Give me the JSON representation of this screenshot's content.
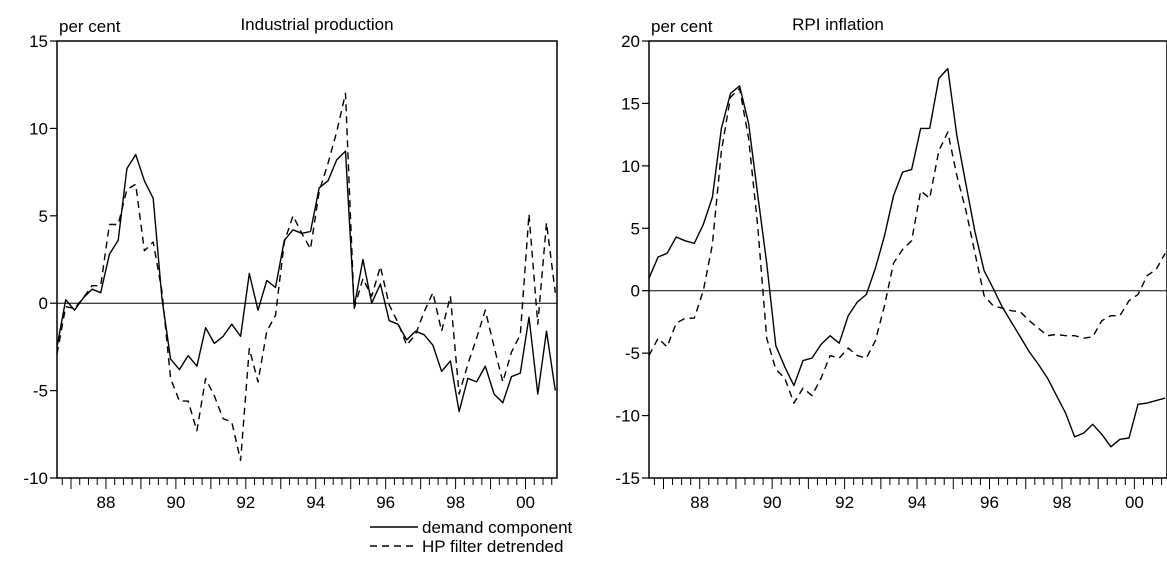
{
  "legend": {
    "solid_label": "demand component",
    "dashed_label": "HP filter detrended"
  },
  "chart_data": [
    {
      "type": "line",
      "title": "Industrial production",
      "ylabel": "per cent",
      "xlabel": "",
      "xlim": [
        1986.6,
        2000.9
      ],
      "ylim": [
        -10,
        15
      ],
      "yticks": [
        15,
        10,
        5,
        0,
        -5,
        -10
      ],
      "xtick_labels": [
        {
          "x": 1988,
          "label": "88"
        },
        {
          "x": 1990,
          "label": "90"
        },
        {
          "x": 1992,
          "label": "92"
        },
        {
          "x": 1994,
          "label": "94"
        },
        {
          "x": 1996,
          "label": "96"
        },
        {
          "x": 1998,
          "label": "98"
        },
        {
          "x": 2000,
          "label": "00"
        }
      ],
      "zero_line": true,
      "series": [
        {
          "name": "demand component",
          "style": "solid",
          "x": [
            1986.6,
            1986.85,
            1987.1,
            1987.35,
            1987.6,
            1987.85,
            1988.1,
            1988.35,
            1988.6,
            1988.85,
            1989.1,
            1989.35,
            1989.6,
            1989.85,
            1990.1,
            1990.35,
            1990.6,
            1990.85,
            1991.1,
            1991.35,
            1991.6,
            1991.85,
            1992.1,
            1992.35,
            1992.6,
            1992.85,
            1993.1,
            1993.35,
            1993.6,
            1993.85,
            1994.1,
            1994.35,
            1994.6,
            1994.85,
            1995.1,
            1995.35,
            1995.6,
            1995.85,
            1996.1,
            1996.35,
            1996.6,
            1996.85,
            1997.1,
            1997.35,
            1997.6,
            1997.85,
            1998.1,
            1998.35,
            1998.6,
            1998.85,
            1999.1,
            1999.35,
            1999.6,
            1999.85,
            2000.1,
            2000.35,
            2000.6,
            2000.85
          ],
          "y": [
            -2.5,
            0.2,
            -0.4,
            0.3,
            0.8,
            0.6,
            2.8,
            3.6,
            7.7,
            8.5,
            7.0,
            6.0,
            0.3,
            -3.2,
            -3.8,
            -3.0,
            -3.6,
            -1.4,
            -2.3,
            -1.9,
            -1.2,
            -1.9,
            1.7,
            -0.4,
            1.3,
            0.9,
            3.6,
            4.2,
            4.0,
            4.1,
            6.6,
            7.0,
            8.2,
            8.7,
            -0.2,
            2.5,
            0.0,
            1.1,
            -1.0,
            -1.2,
            -2.1,
            -1.6,
            -1.8,
            -2.4,
            -3.9,
            -3.3,
            -6.2,
            -4.3,
            -4.5,
            -3.6,
            -5.2,
            -5.7,
            -4.2,
            -4.0,
            -0.8,
            -5.2,
            -1.6,
            -5.0
          ]
        },
        {
          "name": "HP filter detrended",
          "style": "dashed",
          "x": [
            1986.6,
            1986.85,
            1987.1,
            1987.35,
            1987.6,
            1987.85,
            1988.1,
            1988.35,
            1988.6,
            1988.85,
            1989.1,
            1989.35,
            1989.6,
            1989.85,
            1990.1,
            1990.35,
            1990.6,
            1990.85,
            1991.1,
            1991.35,
            1991.6,
            1991.85,
            1992.1,
            1992.35,
            1992.6,
            1992.85,
            1993.1,
            1993.35,
            1993.6,
            1993.85,
            1994.1,
            1994.35,
            1994.6,
            1994.85,
            1995.1,
            1995.35,
            1995.6,
            1995.85,
            1996.1,
            1996.35,
            1996.6,
            1996.85,
            1997.1,
            1997.35,
            1997.6,
            1997.85,
            1998.1,
            1998.35,
            1998.6,
            1998.85,
            1999.1,
            1999.35,
            1999.6,
            1999.85,
            2000.1,
            2000.35,
            2000.6,
            2000.85
          ],
          "y": [
            -2.9,
            -0.2,
            -0.3,
            0.3,
            1.0,
            1.0,
            4.5,
            4.5,
            6.5,
            6.8,
            3.0,
            3.5,
            0.7,
            -4.3,
            -5.6,
            -5.6,
            -7.3,
            -4.3,
            -5.3,
            -6.6,
            -6.8,
            -9.0,
            -2.6,
            -4.5,
            -1.6,
            -0.7,
            3.5,
            5.0,
            4.0,
            3.1,
            6.4,
            8.0,
            9.8,
            12.0,
            -0.3,
            1.4,
            0.4,
            2.1,
            -0.1,
            -1.1,
            -2.4,
            -1.8,
            -0.5,
            0.6,
            -1.6,
            0.4,
            -5.2,
            -3.5,
            -2.0,
            -0.4,
            -2.5,
            -4.5,
            -2.8,
            -1.8,
            5.1,
            -1.2,
            4.6,
            0.6
          ]
        }
      ]
    },
    {
      "type": "line",
      "title": "RPI inflation",
      "ylabel": "per cent",
      "xlabel": "",
      "xlim": [
        1986.6,
        2000.9
      ],
      "ylim": [
        -15,
        20
      ],
      "yticks": [
        20,
        15,
        10,
        5,
        0,
        -5,
        -10,
        -15
      ],
      "xtick_labels": [
        {
          "x": 1988,
          "label": "88"
        },
        {
          "x": 1990,
          "label": "90"
        },
        {
          "x": 1992,
          "label": "92"
        },
        {
          "x": 1994,
          "label": "94"
        },
        {
          "x": 1996,
          "label": "96"
        },
        {
          "x": 1998,
          "label": "98"
        },
        {
          "x": 2000,
          "label": "00"
        }
      ],
      "zero_line": true,
      "series": [
        {
          "name": "demand component",
          "style": "solid",
          "x": [
            1986.6,
            1986.85,
            1987.1,
            1987.35,
            1987.6,
            1987.85,
            1988.1,
            1988.35,
            1988.6,
            1988.85,
            1989.1,
            1989.35,
            1989.6,
            1989.85,
            1990.1,
            1990.35,
            1990.6,
            1990.85,
            1991.1,
            1991.35,
            1991.6,
            1991.85,
            1992.1,
            1992.35,
            1992.6,
            1992.85,
            1993.1,
            1993.35,
            1993.6,
            1993.85,
            1994.1,
            1994.35,
            1994.6,
            1994.85,
            1995.1,
            1995.35,
            1995.6,
            1995.85,
            1996.1,
            1996.35,
            1996.6,
            1996.85,
            1997.1,
            1997.35,
            1997.6,
            1997.85,
            1998.1,
            1998.35,
            1998.6,
            1998.85,
            1999.1,
            1999.35,
            1999.6,
            1999.85,
            2000.1,
            2000.35,
            2000.6,
            2000.85
          ],
          "y": [
            1.0,
            2.7,
            3.0,
            4.3,
            4.0,
            3.8,
            5.3,
            7.5,
            13.0,
            15.8,
            16.4,
            13.4,
            7.7,
            2.2,
            -4.4,
            -6.1,
            -7.6,
            -5.6,
            -5.4,
            -4.3,
            -3.6,
            -4.2,
            -2.0,
            -0.9,
            -0.3,
            1.8,
            4.4,
            7.6,
            9.5,
            9.7,
            13.0,
            13.0,
            17.0,
            17.8,
            12.4,
            8.5,
            4.7,
            1.6,
            0.2,
            -1.3,
            -2.5,
            -3.7,
            -4.9,
            -5.9,
            -7.0,
            -8.4,
            -9.8,
            -11.7,
            -11.4,
            -10.7,
            -11.5,
            -12.5,
            -11.9,
            -11.8,
            -9.1,
            -9.0,
            -8.8,
            -8.6
          ]
        },
        {
          "name": "HP filter detrended",
          "style": "dashed",
          "x": [
            1986.6,
            1986.85,
            1987.1,
            1987.35,
            1987.6,
            1987.85,
            1988.1,
            1988.35,
            1988.6,
            1988.85,
            1989.1,
            1989.35,
            1989.6,
            1989.85,
            1990.1,
            1990.35,
            1990.6,
            1990.85,
            1991.1,
            1991.35,
            1991.6,
            1991.85,
            1992.1,
            1992.35,
            1992.6,
            1992.85,
            1993.1,
            1993.35,
            1993.6,
            1993.85,
            1994.1,
            1994.35,
            1994.6,
            1994.85,
            1995.1,
            1995.35,
            1995.6,
            1995.85,
            1996.1,
            1996.35,
            1996.6,
            1996.85,
            1997.1,
            1997.35,
            1997.6,
            1997.85,
            1998.1,
            1998.35,
            1998.6,
            1998.85,
            1999.1,
            1999.35,
            1999.6,
            1999.85,
            2000.1,
            2000.35,
            2000.6,
            2000.85
          ],
          "y": [
            -5.2,
            -3.8,
            -4.5,
            -2.6,
            -2.2,
            -2.2,
            0.0,
            3.7,
            11.2,
            15.5,
            16.2,
            12.2,
            5.2,
            -3.8,
            -6.3,
            -7.0,
            -9.0,
            -7.8,
            -8.4,
            -7.0,
            -5.2,
            -5.4,
            -4.6,
            -5.2,
            -5.4,
            -4.0,
            -1.2,
            2.2,
            3.3,
            4.0,
            8.0,
            7.4,
            11.2,
            12.7,
            9.2,
            6.4,
            3.0,
            -0.4,
            -1.2,
            -1.4,
            -1.6,
            -1.7,
            -2.4,
            -3.0,
            -3.6,
            -3.5,
            -3.6,
            -3.6,
            -3.8,
            -3.7,
            -2.4,
            -2.0,
            -2.0,
            -0.8,
            -0.3,
            1.2,
            1.7,
            3.0
          ]
        }
      ]
    }
  ]
}
